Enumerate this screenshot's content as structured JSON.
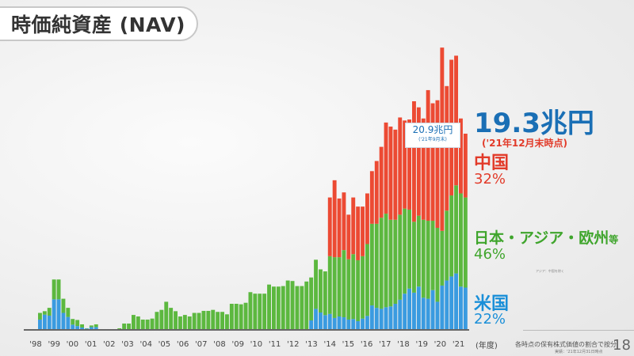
{
  "title": "時価純資産 (NAV)",
  "callout": {
    "value": "20.9兆円",
    "sub": "('21年9月末)"
  },
  "total": {
    "value": "19.3兆円",
    "note": "('21年12月末時点)"
  },
  "breakdown": {
    "china": {
      "label": "中国",
      "pct": "32%"
    },
    "jae": {
      "label": "日本・アジア・欧州",
      "suffix": "等",
      "pct": "46%"
    },
    "us": {
      "label": "米国",
      "pct": "22%"
    }
  },
  "notes": "アジア：中国を除く",
  "x_unit": "(年度)",
  "footer": {
    "text": "各時点の保有株式価値の割合で按分",
    "sub": "実績：'21年12月31日時点"
  },
  "page_number": "18",
  "colors": {
    "us": "#3a9be0",
    "jae": "#5cb83f",
    "china": "#ec4a33",
    "accent": "#1a6fb5"
  },
  "chart_data": {
    "type": "bar",
    "stacked": true,
    "unit": "兆円",
    "x_tick_labels": [
      "'98",
      "'99",
      "'00",
      "'01",
      "'02",
      "'03",
      "'04",
      "'05",
      "'06",
      "'07",
      "'08",
      "'09",
      "'10",
      "'11",
      "'12",
      "'13",
      "'14",
      "'15",
      "'16",
      "'17",
      "'18",
      "'19",
      "'20",
      "'21"
    ],
    "series": [
      {
        "name": "米国",
        "values": [
          0.94,
          1.43,
          1.33,
          2.94,
          2.94,
          1.6,
          1.2,
          0.44,
          0.3,
          0.16,
          0.05,
          0.2,
          0.2,
          0,
          0,
          0,
          0,
          0,
          0,
          0,
          0,
          0,
          0,
          0,
          0,
          0,
          0,
          0,
          0,
          0,
          0,
          0,
          0,
          0,
          0,
          0,
          0,
          0,
          0,
          0,
          0,
          0,
          0,
          0,
          0,
          0,
          0,
          0,
          0,
          0,
          0,
          0,
          0,
          0,
          0,
          0,
          0,
          0,
          0.86,
          2.0,
          1.64,
          1.38,
          1.5,
          1.1,
          1.25,
          1.17,
          0.94,
          1.0,
          0.78,
          1.04,
          1.3,
          2.34,
          2.1,
          2.0,
          2.16,
          2.24,
          2.5,
          2.9,
          3.5,
          4.0,
          3.6,
          4.2,
          3.1,
          3.0,
          3.85,
          2.7,
          4.3,
          4.8,
          5.2,
          5.5,
          4.2,
          4.1
        ]
      },
      {
        "name": "日本・アジア・欧州等",
        "values": [
          0.66,
          0.34,
          0.77,
          1.96,
          1.96,
          1.4,
          0.9,
          0.56,
          0.6,
          0.31,
          0.03,
          0.16,
          0.27,
          0,
          0,
          0,
          0,
          0.08,
          0.55,
          0.55,
          1.4,
          1.25,
          0.94,
          0.94,
          1.04,
          1.7,
          1.9,
          2.7,
          2.1,
          1.77,
          1.25,
          1.4,
          1.25,
          1.6,
          1.6,
          1.8,
          1.8,
          1.9,
          1.7,
          1.7,
          1.46,
          2.5,
          2.5,
          2.45,
          2.6,
          3.65,
          3.5,
          3.5,
          3.5,
          4.4,
          4.2,
          4.2,
          4.25,
          4.8,
          4.75,
          4.25,
          4.25,
          4.7,
          4.24,
          4.85,
          4.26,
          4.32,
          5.7,
          6.0,
          5.85,
          6.63,
          5.96,
          6.4,
          6.02,
          6.16,
          7.1,
          8.06,
          8.3,
          9.0,
          9.24,
          8.56,
          8.3,
          8.4,
          8.4,
          7.8,
          7.0,
          7.0,
          7.7,
          7.7,
          6.85,
          7.3,
          5.4,
          6.9,
          8.0,
          8.7,
          9.2,
          8.9
        ]
      },
      {
        "name": "中国",
        "values": [
          0,
          0,
          0,
          0,
          0,
          0,
          0,
          0,
          0,
          0,
          0,
          0,
          0,
          0,
          0,
          0,
          0,
          0,
          0,
          0,
          0,
          0,
          0,
          0,
          0,
          0,
          0,
          0,
          0,
          0,
          0,
          0,
          0,
          0,
          0,
          0,
          0,
          0,
          0,
          0,
          0,
          0,
          0,
          0,
          0,
          0,
          0,
          0,
          0,
          0,
          0,
          0,
          0,
          0,
          0,
          0,
          0,
          0,
          0,
          0,
          0,
          0,
          5.8,
          7.6,
          5.8,
          5.7,
          4.4,
          5.6,
          5.3,
          4.9,
          5.0,
          5.2,
          6.2,
          7.0,
          9.0,
          9.2,
          8.9,
          9.6,
          8.7,
          8.9,
          11.9,
          10.7,
          10.0,
          12.9,
          11.6,
          12.6,
          18.1,
          12.3,
          13.4,
          12.8,
          7.4,
          6.3
        ]
      }
    ],
    "grid": false,
    "legend": "right (direct labels)"
  }
}
